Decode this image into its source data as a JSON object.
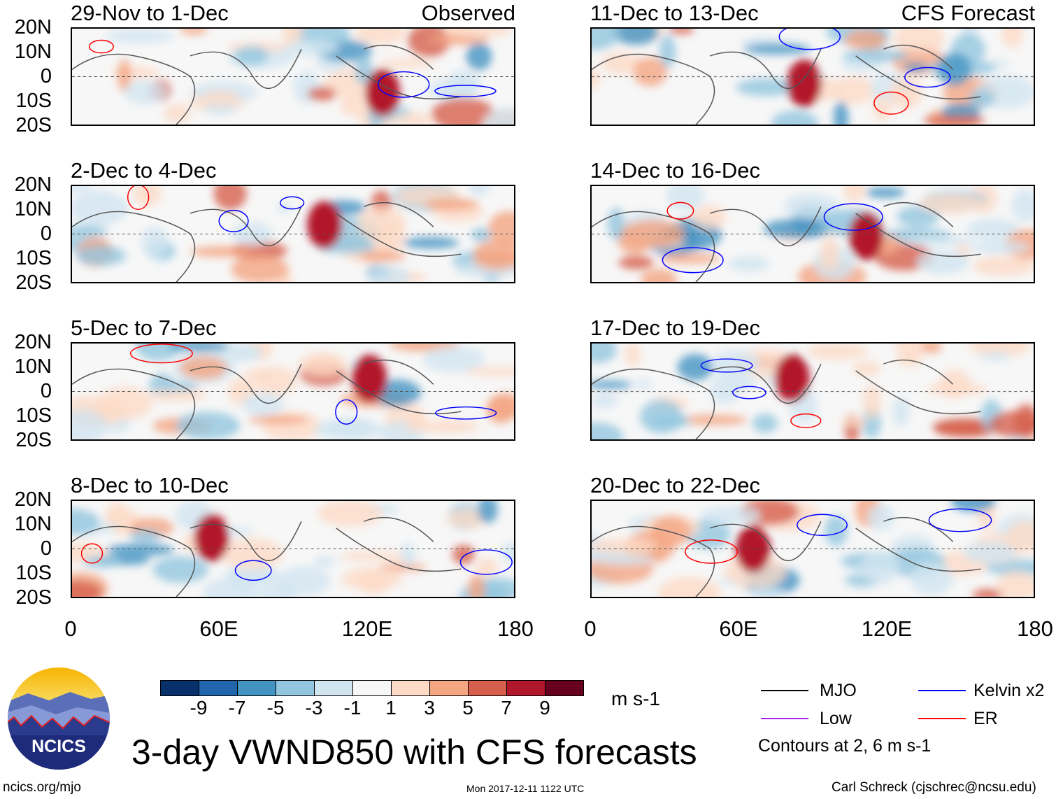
{
  "panels": [
    {
      "id": "p1",
      "title": "29-Nov to 1-Dec",
      "label": "Observed"
    },
    {
      "id": "p2",
      "title": "2-Dec to 4-Dec"
    },
    {
      "id": "p3",
      "title": "5-Dec to 7-Dec"
    },
    {
      "id": "p4",
      "title": "8-Dec to 10-Dec"
    },
    {
      "id": "p5",
      "title": "11-Dec to 13-Dec",
      "label": "CFS Forecast"
    },
    {
      "id": "p6",
      "title": "14-Dec to 16-Dec"
    },
    {
      "id": "p7",
      "title": "17-Dec to 19-Dec"
    },
    {
      "id": "p8",
      "title": "20-Dec to 22-Dec"
    }
  ],
  "lat_labels": [
    "20N",
    "10N",
    "0",
    "10S",
    "20S"
  ],
  "lon_labels": [
    "0",
    "60E",
    "120E",
    "180"
  ],
  "colorbar": {
    "colors": [
      "#08306b",
      "#2166ac",
      "#4393c3",
      "#92c5de",
      "#d1e5f0",
      "#f7f7f7",
      "#fddbc7",
      "#f4a582",
      "#d6604d",
      "#b2182b",
      "#67001f"
    ],
    "ticks": [
      "-9",
      "-7",
      "-5",
      "-3",
      "-1",
      "1",
      "3",
      "5",
      "7",
      "9"
    ],
    "units": "m s-1"
  },
  "legend": {
    "items": [
      {
        "label": "MJO",
        "color": "#000000"
      },
      {
        "label": "Low",
        "color": "#a020f0"
      },
      {
        "label": "Kelvin x2",
        "color": "#0000ff"
      },
      {
        "label": "ER",
        "color": "#ff0000"
      }
    ],
    "note": "Contours at 2, 6 m s-1"
  },
  "title": "3-day VWND850 with CFS forecasts",
  "logo_text": "NCICS",
  "footer": {
    "left": "ncics.org/mjo",
    "center": "Mon 2017-12-11 1122 UTC",
    "right": "Carl Schreck (cjschrec@ncsu.edu)"
  }
}
